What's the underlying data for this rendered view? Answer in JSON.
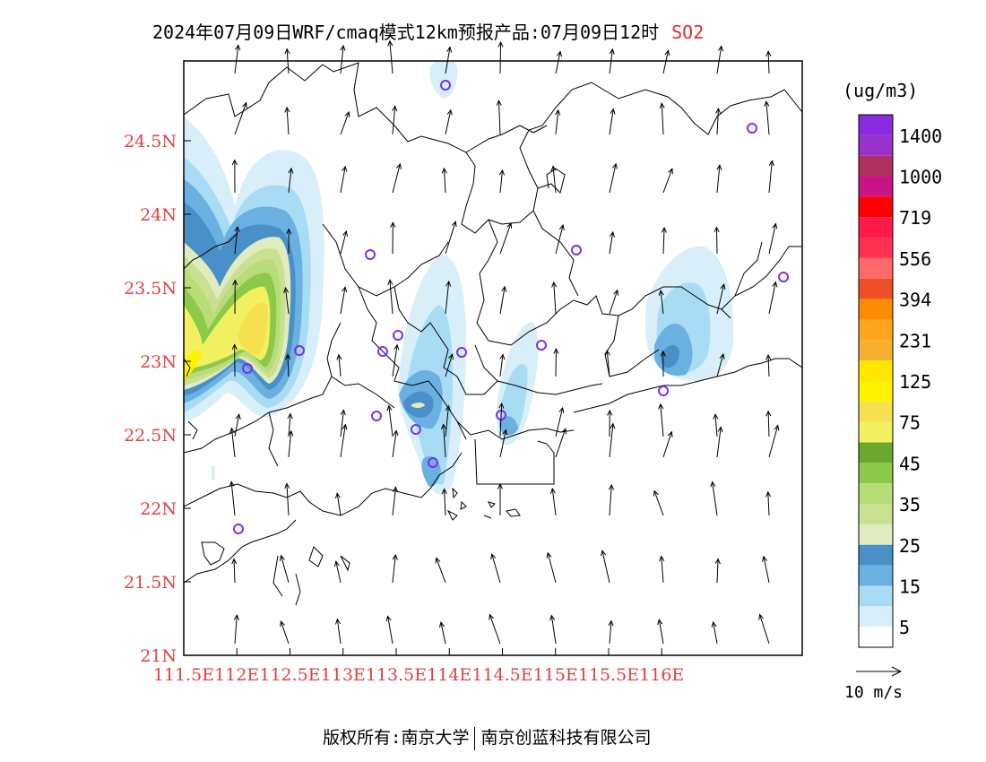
{
  "title": {
    "main": "2024年07月09日WRF/cmaq模式12km预报产品:07月09日12时",
    "species": "SO2"
  },
  "map": {
    "lat_labels": [
      "24.5N",
      "24N",
      "23.5N",
      "23N",
      "22.5N",
      "22N",
      "21.5N",
      "21N"
    ],
    "lon_labels": [
      "111.5E",
      "112E",
      "112.5E",
      "113E",
      "113.5E",
      "114E",
      "114.5E",
      "115E",
      "115.5E",
      "116E"
    ],
    "label_color": "#e04040"
  },
  "colorbar": {
    "unit": "(ug/m3)",
    "labels": [
      "1400",
      "1000",
      "719",
      "556",
      "394",
      "231",
      "125",
      "75",
      "45",
      "35",
      "25",
      "15",
      "5"
    ],
    "colors_top_to_bottom": [
      "#8a2be2",
      "#9932cc",
      "#b03060",
      "#c71585",
      "#ff0000",
      "#ff1a4a",
      "#ff3050",
      "#ff6a6a",
      "#f05028",
      "#ff8c00",
      "#ffa520",
      "#f5b030",
      "#ffe600",
      "#fff200",
      "#f5e050",
      "#f0f060",
      "#6aa830",
      "#8cc84a",
      "#b8dc78",
      "#c8e090",
      "#e0ecc0",
      "#4a90c8",
      "#6ab0e0",
      "#a8dcf5",
      "#d8eef8",
      "#ffffff"
    ]
  },
  "wind_legend": {
    "label": "10 m/s"
  },
  "footer": {
    "left": "版权所有:南京大学",
    "right": "南京创蓝科技有限公司"
  }
}
